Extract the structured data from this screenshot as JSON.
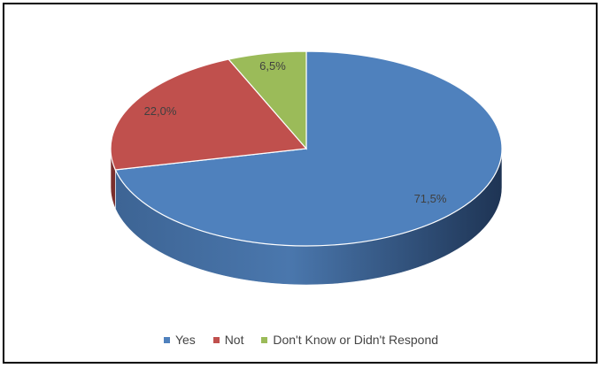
{
  "chart_data": {
    "type": "pie",
    "title": "",
    "labels": [
      "Yes",
      "Not",
      "Don't Know or Didn't Respond"
    ],
    "values": [
      71.5,
      22.0,
      6.5
    ],
    "value_labels": [
      "71,5%",
      "22,0%",
      "6,5%"
    ],
    "colors": [
      "#4f81bd",
      "#c0504d",
      "#9bbb59"
    ],
    "side_colors": [
      "#2c4a70",
      "#7a2f2d",
      "#5f7436"
    ],
    "legend_position": "bottom",
    "style": "3d"
  }
}
